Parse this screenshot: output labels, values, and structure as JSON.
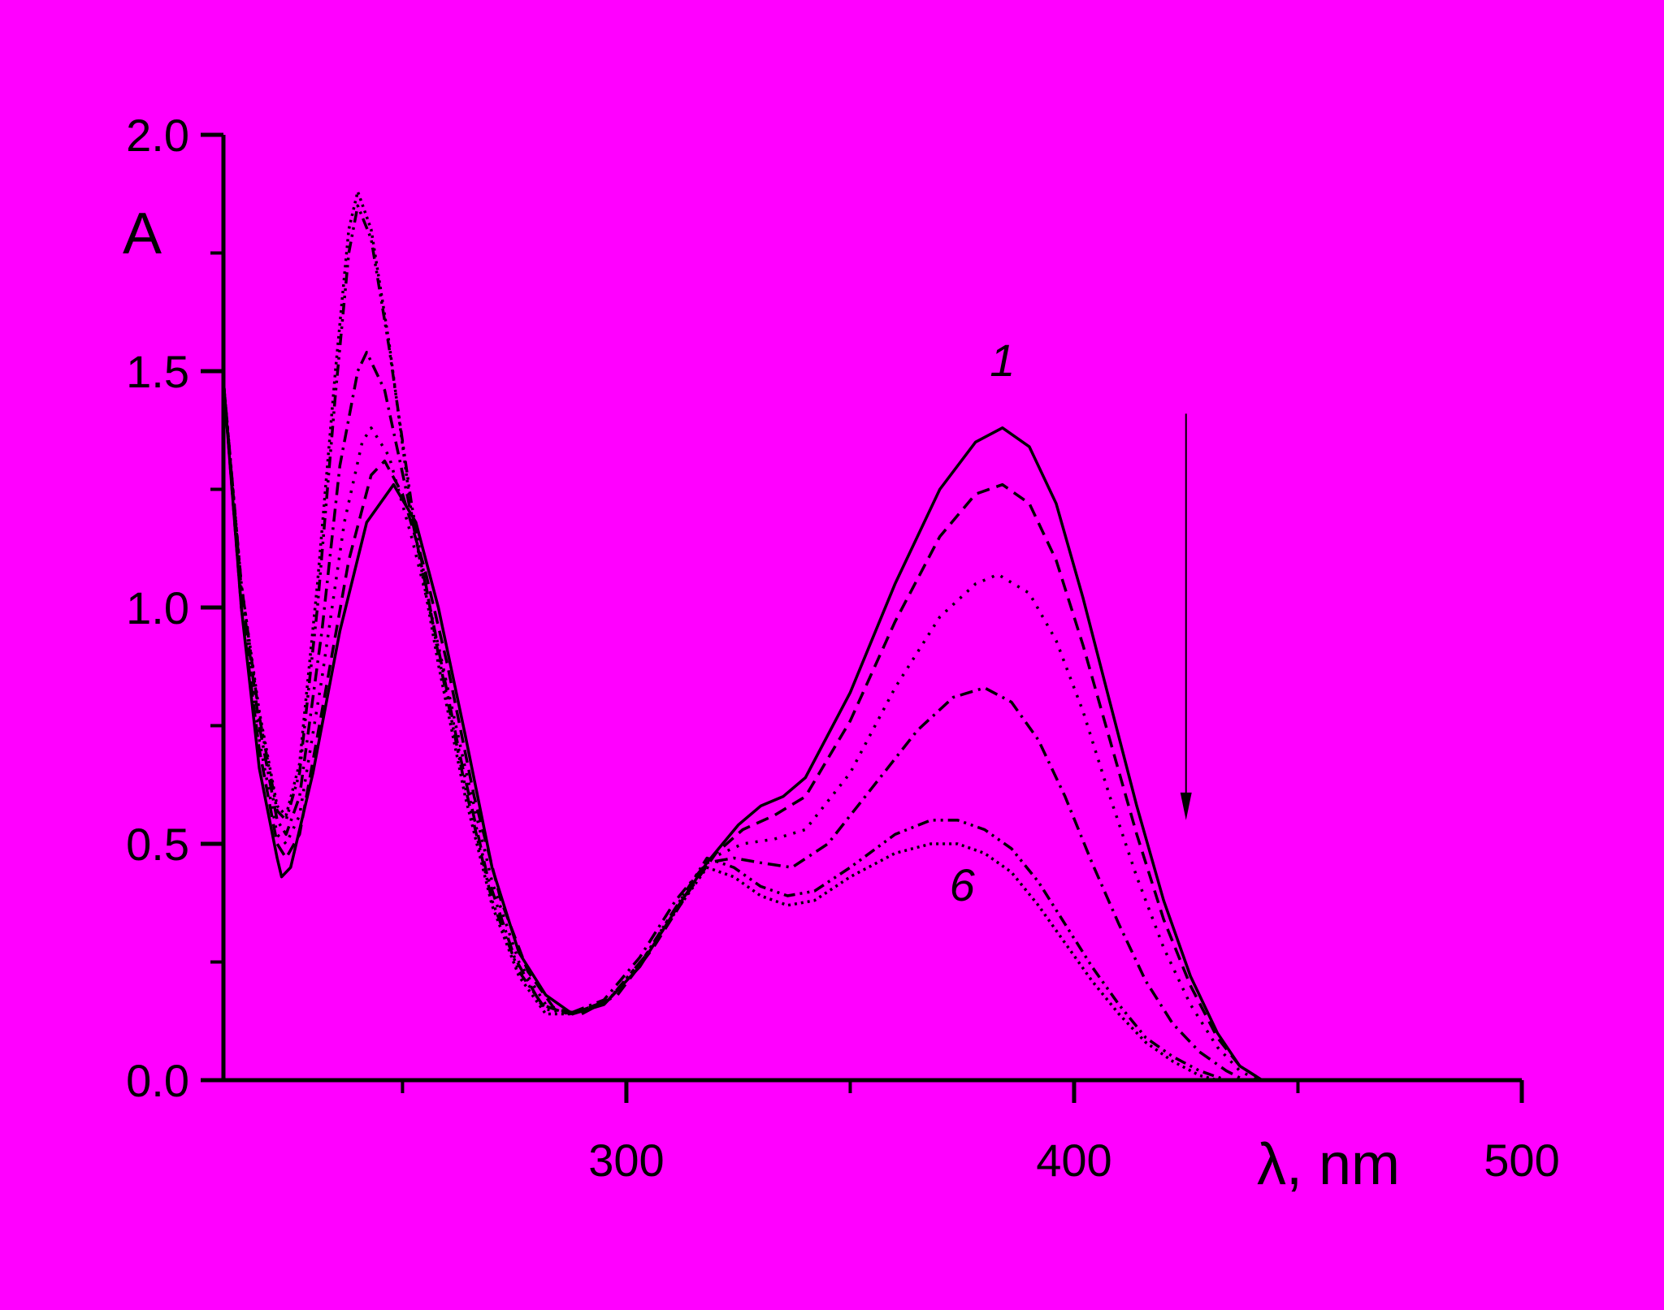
{
  "background_color": "#ff00ff",
  "line_color": "#000000",
  "chart_data": {
    "type": "line",
    "title": "",
    "xlabel": "λ, nm",
    "ylabel": "A",
    "xlim": [
      210,
      500
    ],
    "ylim": [
      0,
      2.0
    ],
    "x_major_ticks": [
      300,
      400,
      500
    ],
    "x_minor_ticks": [
      250,
      350,
      450
    ],
    "y_major_ticks": [
      0.0,
      0.5,
      1.0,
      1.5,
      2.0
    ],
    "y_tick_labels": [
      "0.0",
      "0.5",
      "1.0",
      "1.5",
      "2.0"
    ],
    "x_tick_labels": [
      "300",
      "400",
      "500"
    ],
    "y_minor_ticks": [
      0.25,
      0.75,
      1.25,
      1.75
    ],
    "grid": false,
    "legend": "none",
    "annotations": [
      {
        "text": "1",
        "x": 384,
        "y": 1.49
      },
      {
        "text": "6",
        "x": 375,
        "y": 0.38
      }
    ],
    "arrow": {
      "x": 425,
      "y_from": 1.41,
      "y_to": 0.55,
      "direction": "down"
    },
    "series": [
      {
        "dash": "solid",
        "points": [
          [
            210,
            1.48
          ],
          [
            214,
            1.0
          ],
          [
            218,
            0.66
          ],
          [
            222,
            0.47
          ],
          [
            223,
            0.43
          ],
          [
            225,
            0.45
          ],
          [
            230,
            0.65
          ],
          [
            236,
            0.95
          ],
          [
            242,
            1.18
          ],
          [
            248,
            1.26
          ],
          [
            253,
            1.18
          ],
          [
            258,
            1.0
          ],
          [
            264,
            0.73
          ],
          [
            270,
            0.45
          ],
          [
            276,
            0.27
          ],
          [
            282,
            0.18
          ],
          [
            288,
            0.14
          ],
          [
            295,
            0.16
          ],
          [
            303,
            0.24
          ],
          [
            311,
            0.36
          ],
          [
            318,
            0.46
          ],
          [
            325,
            0.54
          ],
          [
            330,
            0.58
          ],
          [
            335,
            0.6
          ],
          [
            340,
            0.64
          ],
          [
            350,
            0.82
          ],
          [
            360,
            1.05
          ],
          [
            370,
            1.25
          ],
          [
            378,
            1.35
          ],
          [
            384,
            1.38
          ],
          [
            390,
            1.34
          ],
          [
            396,
            1.22
          ],
          [
            402,
            1.02
          ],
          [
            408,
            0.8
          ],
          [
            414,
            0.58
          ],
          [
            420,
            0.38
          ],
          [
            426,
            0.22
          ],
          [
            432,
            0.1
          ],
          [
            437,
            0.03
          ],
          [
            442,
            0.0
          ]
        ]
      },
      {
        "dash": "dashed",
        "points": [
          [
            210,
            1.48
          ],
          [
            214,
            1.0
          ],
          [
            218,
            0.7
          ],
          [
            222,
            0.5
          ],
          [
            224,
            0.47
          ],
          [
            227,
            0.52
          ],
          [
            232,
            0.78
          ],
          [
            238,
            1.1
          ],
          [
            243,
            1.28
          ],
          [
            246,
            1.31
          ],
          [
            250,
            1.24
          ],
          [
            255,
            1.08
          ],
          [
            260,
            0.88
          ],
          [
            266,
            0.6
          ],
          [
            272,
            0.38
          ],
          [
            278,
            0.23
          ],
          [
            284,
            0.15
          ],
          [
            290,
            0.14
          ],
          [
            298,
            0.18
          ],
          [
            306,
            0.28
          ],
          [
            314,
            0.4
          ],
          [
            320,
            0.48
          ],
          [
            326,
            0.53
          ],
          [
            333,
            0.56
          ],
          [
            340,
            0.6
          ],
          [
            350,
            0.76
          ],
          [
            360,
            0.97
          ],
          [
            370,
            1.15
          ],
          [
            378,
            1.24
          ],
          [
            384,
            1.26
          ],
          [
            390,
            1.22
          ],
          [
            396,
            1.1
          ],
          [
            402,
            0.92
          ],
          [
            408,
            0.72
          ],
          [
            414,
            0.52
          ],
          [
            420,
            0.34
          ],
          [
            426,
            0.2
          ],
          [
            432,
            0.09
          ],
          [
            437,
            0.03
          ],
          [
            442,
            0.0
          ]
        ]
      },
      {
        "dash": "dotted",
        "points": [
          [
            210,
            1.48
          ],
          [
            214,
            1.02
          ],
          [
            218,
            0.72
          ],
          [
            222,
            0.52
          ],
          [
            224,
            0.5
          ],
          [
            227,
            0.56
          ],
          [
            232,
            0.85
          ],
          [
            237,
            1.18
          ],
          [
            241,
            1.35
          ],
          [
            243,
            1.38
          ],
          [
            247,
            1.32
          ],
          [
            252,
            1.15
          ],
          [
            258,
            0.92
          ],
          [
            264,
            0.66
          ],
          [
            270,
            0.42
          ],
          [
            276,
            0.25
          ],
          [
            282,
            0.16
          ],
          [
            288,
            0.14
          ],
          [
            296,
            0.17
          ],
          [
            304,
            0.26
          ],
          [
            312,
            0.38
          ],
          [
            319,
            0.47
          ],
          [
            326,
            0.5
          ],
          [
            333,
            0.51
          ],
          [
            340,
            0.53
          ],
          [
            350,
            0.65
          ],
          [
            360,
            0.83
          ],
          [
            370,
            0.98
          ],
          [
            378,
            1.05
          ],
          [
            383,
            1.07
          ],
          [
            390,
            1.03
          ],
          [
            396,
            0.93
          ],
          [
            402,
            0.78
          ],
          [
            408,
            0.6
          ],
          [
            414,
            0.43
          ],
          [
            420,
            0.28
          ],
          [
            426,
            0.16
          ],
          [
            432,
            0.07
          ],
          [
            437,
            0.02
          ],
          [
            441,
            0.0
          ]
        ]
      },
      {
        "dash": "dashdot",
        "points": [
          [
            210,
            1.48
          ],
          [
            214,
            1.04
          ],
          [
            218,
            0.75
          ],
          [
            222,
            0.55
          ],
          [
            224,
            0.52
          ],
          [
            227,
            0.6
          ],
          [
            232,
            0.95
          ],
          [
            236,
            1.3
          ],
          [
            240,
            1.5
          ],
          [
            242,
            1.54
          ],
          [
            246,
            1.46
          ],
          [
            251,
            1.24
          ],
          [
            257,
            0.96
          ],
          [
            263,
            0.68
          ],
          [
            269,
            0.43
          ],
          [
            275,
            0.26
          ],
          [
            281,
            0.16
          ],
          [
            287,
            0.14
          ],
          [
            295,
            0.17
          ],
          [
            303,
            0.26
          ],
          [
            311,
            0.38
          ],
          [
            318,
            0.46
          ],
          [
            324,
            0.47
          ],
          [
            330,
            0.46
          ],
          [
            337,
            0.45
          ],
          [
            345,
            0.5
          ],
          [
            355,
            0.62
          ],
          [
            365,
            0.74
          ],
          [
            373,
            0.81
          ],
          [
            380,
            0.83
          ],
          [
            386,
            0.8
          ],
          [
            392,
            0.72
          ],
          [
            398,
            0.6
          ],
          [
            404,
            0.46
          ],
          [
            410,
            0.33
          ],
          [
            416,
            0.21
          ],
          [
            422,
            0.12
          ],
          [
            428,
            0.06
          ],
          [
            434,
            0.02
          ],
          [
            438,
            0.0
          ]
        ]
      },
      {
        "dash": "dashdotdot",
        "points": [
          [
            210,
            1.48
          ],
          [
            214,
            1.05
          ],
          [
            218,
            0.77
          ],
          [
            222,
            0.57
          ],
          [
            224,
            0.55
          ],
          [
            227,
            0.65
          ],
          [
            231,
            1.0
          ],
          [
            235,
            1.45
          ],
          [
            238,
            1.75
          ],
          [
            240,
            1.85
          ],
          [
            243,
            1.78
          ],
          [
            247,
            1.55
          ],
          [
            252,
            1.22
          ],
          [
            258,
            0.9
          ],
          [
            264,
            0.62
          ],
          [
            270,
            0.38
          ],
          [
            276,
            0.23
          ],
          [
            282,
            0.15
          ],
          [
            288,
            0.14
          ],
          [
            296,
            0.17
          ],
          [
            304,
            0.26
          ],
          [
            312,
            0.38
          ],
          [
            318,
            0.47
          ],
          [
            324,
            0.45
          ],
          [
            330,
            0.41
          ],
          [
            336,
            0.39
          ],
          [
            342,
            0.4
          ],
          [
            350,
            0.45
          ],
          [
            360,
            0.52
          ],
          [
            368,
            0.55
          ],
          [
            374,
            0.55
          ],
          [
            380,
            0.53
          ],
          [
            386,
            0.49
          ],
          [
            392,
            0.42
          ],
          [
            398,
            0.33
          ],
          [
            404,
            0.24
          ],
          [
            410,
            0.16
          ],
          [
            416,
            0.09
          ],
          [
            422,
            0.05
          ],
          [
            428,
            0.02
          ],
          [
            434,
            0.0
          ]
        ]
      },
      {
        "dash": "densedot",
        "points": [
          [
            210,
            1.48
          ],
          [
            214,
            1.05
          ],
          [
            218,
            0.78
          ],
          [
            222,
            0.58
          ],
          [
            224,
            0.56
          ],
          [
            227,
            0.67
          ],
          [
            231,
            1.05
          ],
          [
            235,
            1.5
          ],
          [
            238,
            1.8
          ],
          [
            240,
            1.88
          ],
          [
            243,
            1.8
          ],
          [
            247,
            1.56
          ],
          [
            252,
            1.2
          ],
          [
            258,
            0.88
          ],
          [
            264,
            0.6
          ],
          [
            270,
            0.37
          ],
          [
            276,
            0.22
          ],
          [
            282,
            0.14
          ],
          [
            288,
            0.14
          ],
          [
            296,
            0.17
          ],
          [
            304,
            0.26
          ],
          [
            312,
            0.37
          ],
          [
            318,
            0.45
          ],
          [
            324,
            0.43
          ],
          [
            330,
            0.39
          ],
          [
            336,
            0.37
          ],
          [
            342,
            0.38
          ],
          [
            350,
            0.43
          ],
          [
            360,
            0.48
          ],
          [
            368,
            0.5
          ],
          [
            374,
            0.5
          ],
          [
            380,
            0.48
          ],
          [
            386,
            0.44
          ],
          [
            392,
            0.37
          ],
          [
            398,
            0.29
          ],
          [
            404,
            0.21
          ],
          [
            410,
            0.14
          ],
          [
            416,
            0.08
          ],
          [
            422,
            0.04
          ],
          [
            428,
            0.01
          ],
          [
            432,
            0.0
          ]
        ]
      }
    ]
  }
}
